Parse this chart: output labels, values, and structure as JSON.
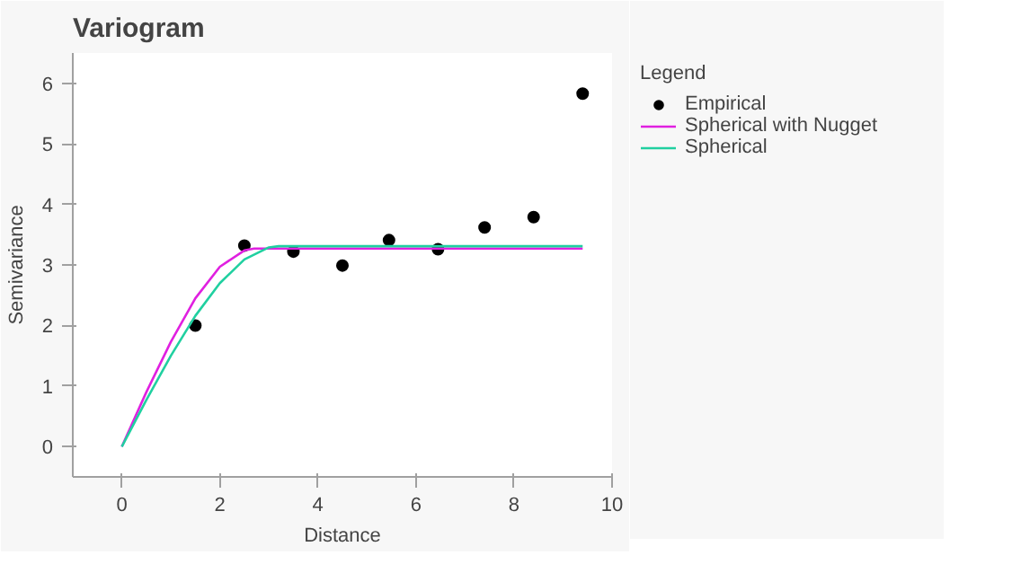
{
  "chart_data": {
    "type": "scatter",
    "title": "Variogram",
    "xlabel": "Distance",
    "ylabel": "Semivariance",
    "legend_title": "Legend",
    "xlim": [
      -1,
      10
    ],
    "xticks": [
      0,
      2,
      4,
      6,
      8,
      10
    ],
    "ylim": [
      -0.5,
      6.5
    ],
    "yticks": [
      0,
      1,
      2,
      3,
      4,
      5,
      6
    ],
    "grid": false,
    "legend": "right",
    "series": [
      {
        "name": "Empirical",
        "marker": "circle",
        "color": "#000000",
        "x": [
          1.5,
          2.5,
          3.5,
          4.5,
          5.45,
          6.45,
          7.4,
          8.4,
          9.4
        ],
        "values": [
          2.0,
          3.32,
          3.22,
          2.99,
          3.41,
          3.26,
          3.62,
          3.79,
          5.83
        ]
      },
      {
        "name": "Spherical with Nugget",
        "type": "line",
        "color": "#e020e0",
        "x": [
          0,
          0.5,
          1.0,
          1.5,
          2.0,
          2.5,
          2.7,
          9.4
        ],
        "values": [
          0,
          0.9,
          1.73,
          2.45,
          2.97,
          3.24,
          3.27,
          3.27
        ]
      },
      {
        "name": "Spherical",
        "type": "line",
        "color": "#20d0a0",
        "x": [
          0,
          0.5,
          1.0,
          1.5,
          2.0,
          2.5,
          3.0,
          3.2,
          9.4
        ],
        "values": [
          0,
          0.77,
          1.5,
          2.16,
          2.7,
          3.09,
          3.29,
          3.31,
          3.31
        ]
      }
    ]
  }
}
